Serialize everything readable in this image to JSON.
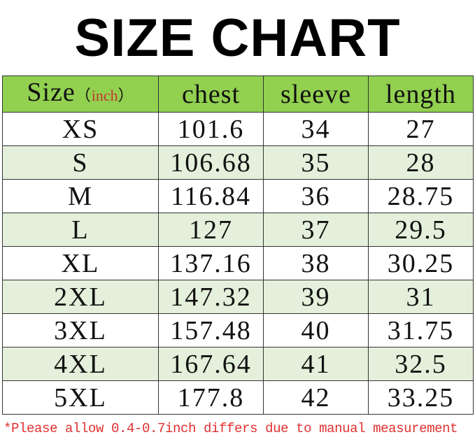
{
  "title": "SIZE CHART",
  "header": {
    "size": "Size",
    "unit": "inch",
    "chest": "chest",
    "sleeve": "sleeve",
    "length": "length"
  },
  "colors": {
    "header_bg": "#92d050",
    "alt_row_bg": "#e4f0db",
    "unit_text": "#c0392b",
    "note_text": "#e03030"
  },
  "rows": [
    {
      "size": "XS",
      "chest": "101.6",
      "sleeve": "34",
      "length": "27"
    },
    {
      "size": "S",
      "chest": "106.68",
      "sleeve": "35",
      "length": "28"
    },
    {
      "size": "M",
      "chest": "116.84",
      "sleeve": "36",
      "length": "28.75"
    },
    {
      "size": "L",
      "chest": "127",
      "sleeve": "37",
      "length": "29.5"
    },
    {
      "size": "XL",
      "chest": "137.16",
      "sleeve": "38",
      "length": "30.25"
    },
    {
      "size": "2XL",
      "chest": "147.32",
      "sleeve": "39",
      "length": "31"
    },
    {
      "size": "3XL",
      "chest": "157.48",
      "sleeve": "40",
      "length": "31.75"
    },
    {
      "size": "4XL",
      "chest": "167.64",
      "sleeve": "41",
      "length": "32.5"
    },
    {
      "size": "5XL",
      "chest": "177.8",
      "sleeve": "42",
      "length": "33.25"
    }
  ],
  "note": "*Please allow 0.4-0.7inch differs due to manual measurement"
}
